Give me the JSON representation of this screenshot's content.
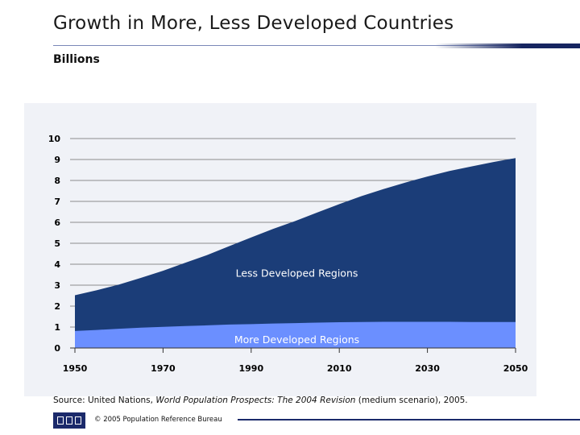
{
  "slide": {
    "title": "Growth in More, Less Developed Countries",
    "subtitle": "Billions",
    "source_prefix": "Source: United Nations, ",
    "source_italic": "World Population Prospects: The 2004 Revision",
    "source_suffix": " (medium scenario), 2005.",
    "copyright": "© 2005 Population Reference Bureau"
  },
  "colors": {
    "less_developed": "#1b3d78",
    "more_developed": "#6b8fff",
    "accent": "#1b2a6b"
  },
  "chart_data": {
    "type": "area",
    "stacked": true,
    "title": "",
    "xlabel": "",
    "ylabel": "Billions",
    "xlim": [
      1950,
      2050
    ],
    "ylim": [
      0,
      10
    ],
    "xticks": [
      1950,
      1970,
      1990,
      2010,
      2030,
      2050
    ],
    "yticks": [
      0,
      1,
      2,
      3,
      4,
      5,
      6,
      7,
      8,
      9,
      10
    ],
    "grid": true,
    "x": [
      1950,
      1955,
      1960,
      1965,
      1970,
      1975,
      1980,
      1985,
      1990,
      1995,
      2000,
      2005,
      2010,
      2015,
      2020,
      2025,
      2030,
      2035,
      2040,
      2045,
      2050
    ],
    "series": [
      {
        "name": "More Developed Regions",
        "values": [
          0.81,
          0.86,
          0.92,
          0.97,
          1.01,
          1.05,
          1.08,
          1.12,
          1.14,
          1.17,
          1.19,
          1.21,
          1.23,
          1.24,
          1.25,
          1.25,
          1.25,
          1.25,
          1.24,
          1.24,
          1.24
        ]
      },
      {
        "name": "Less Developed Regions",
        "values": [
          1.71,
          1.9,
          2.11,
          2.38,
          2.68,
          3.02,
          3.36,
          3.74,
          4.14,
          4.52,
          4.87,
          5.26,
          5.64,
          6.01,
          6.34,
          6.65,
          6.94,
          7.2,
          7.43,
          7.64,
          7.83
        ]
      }
    ]
  }
}
